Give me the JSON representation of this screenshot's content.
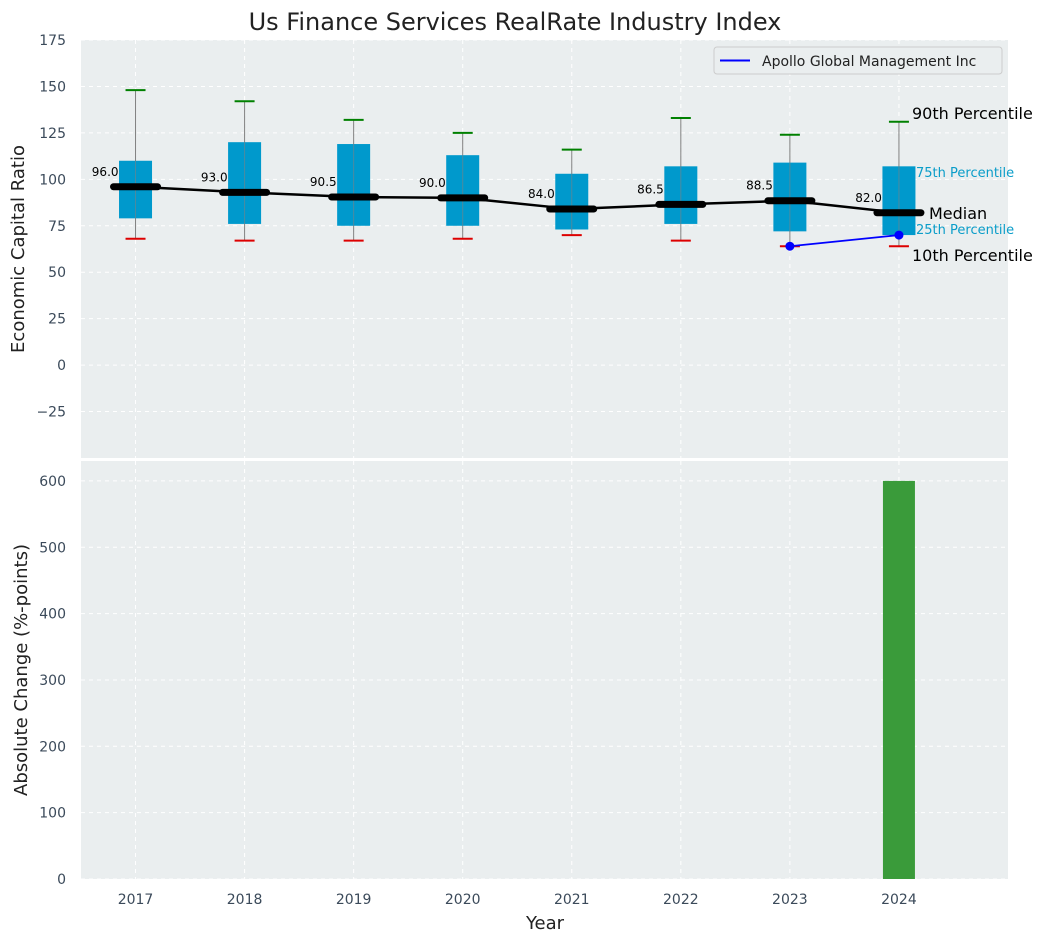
{
  "chart_data": [
    {
      "type": "box",
      "title": "Us Finance Services RealRate Industry Index",
      "ylabel": "Economic Capital Ratio",
      "ylim": [
        -50,
        175
      ],
      "yticks": [
        -25,
        0,
        25,
        50,
        75,
        100,
        125,
        150,
        175
      ],
      "ytick_labels": [
        "−25",
        "0",
        "25",
        "50",
        "75",
        "100",
        "125",
        "150",
        "175"
      ],
      "grid": true,
      "colors": {
        "box": "#0099cc",
        "median": "#000000",
        "p90": "#008000",
        "p10": "#dd0000",
        "whisker": "#808080",
        "company": "#0000ff",
        "background": "#eaeeef"
      },
      "categories": [
        "2017",
        "2018",
        "2019",
        "2020",
        "2021",
        "2022",
        "2023",
        "2024"
      ],
      "boxes": [
        {
          "year": "2017",
          "p10": 68,
          "p25": 79,
          "median": 96.0,
          "p75": 110,
          "p90": 148,
          "median_label": "96.0"
        },
        {
          "year": "2018",
          "p10": 67,
          "p25": 76,
          "median": 93.0,
          "p75": 120,
          "p90": 142,
          "median_label": "93.0"
        },
        {
          "year": "2019",
          "p10": 67,
          "p25": 75,
          "median": 90.5,
          "p75": 119,
          "p90": 132,
          "median_label": "90.5"
        },
        {
          "year": "2020",
          "p10": 68,
          "p25": 75,
          "median": 90.0,
          "p75": 113,
          "p90": 125,
          "median_label": "90.0"
        },
        {
          "year": "2021",
          "p10": 70,
          "p25": 73,
          "median": 84.0,
          "p75": 103,
          "p90": 116,
          "median_label": "84.0"
        },
        {
          "year": "2022",
          "p10": 67,
          "p25": 76,
          "median": 86.5,
          "p75": 107,
          "p90": 133,
          "median_label": "86.5"
        },
        {
          "year": "2023",
          "p10": 64,
          "p25": 72,
          "median": 88.5,
          "p75": 109,
          "p90": 124,
          "median_label": "88.5"
        },
        {
          "year": "2024",
          "p10": 64,
          "p25": 70,
          "median": 82.0,
          "p75": 107,
          "p90": 131,
          "median_label": "82.0"
        }
      ],
      "series": [
        {
          "name": "Apollo Global Management Inc",
          "x": [
            "2023",
            "2024"
          ],
          "values": [
            64,
            70
          ]
        }
      ],
      "legend": {
        "position": "top-right",
        "entries": [
          "Apollo Global Management Inc"
        ]
      },
      "annotations": {
        "p90": "90th Percentile",
        "p75": "75th Percentile",
        "median": "Median",
        "p25": "25th Percentile",
        "p10": "10th Percentile"
      }
    },
    {
      "type": "bar",
      "ylabel": "Absolute Change (%-points)",
      "xlabel": "Year",
      "ylim": [
        0,
        630
      ],
      "yticks": [
        0,
        100,
        200,
        300,
        400,
        500,
        600
      ],
      "ytick_labels": [
        "0",
        "100",
        "200",
        "300",
        "400",
        "500",
        "600"
      ],
      "grid": true,
      "colors": {
        "bar": "#3a9b3a"
      },
      "categories": [
        "2017",
        "2018",
        "2019",
        "2020",
        "2021",
        "2022",
        "2023",
        "2024"
      ],
      "values": [
        0,
        0,
        0,
        0,
        0,
        0,
        0,
        600
      ]
    }
  ]
}
